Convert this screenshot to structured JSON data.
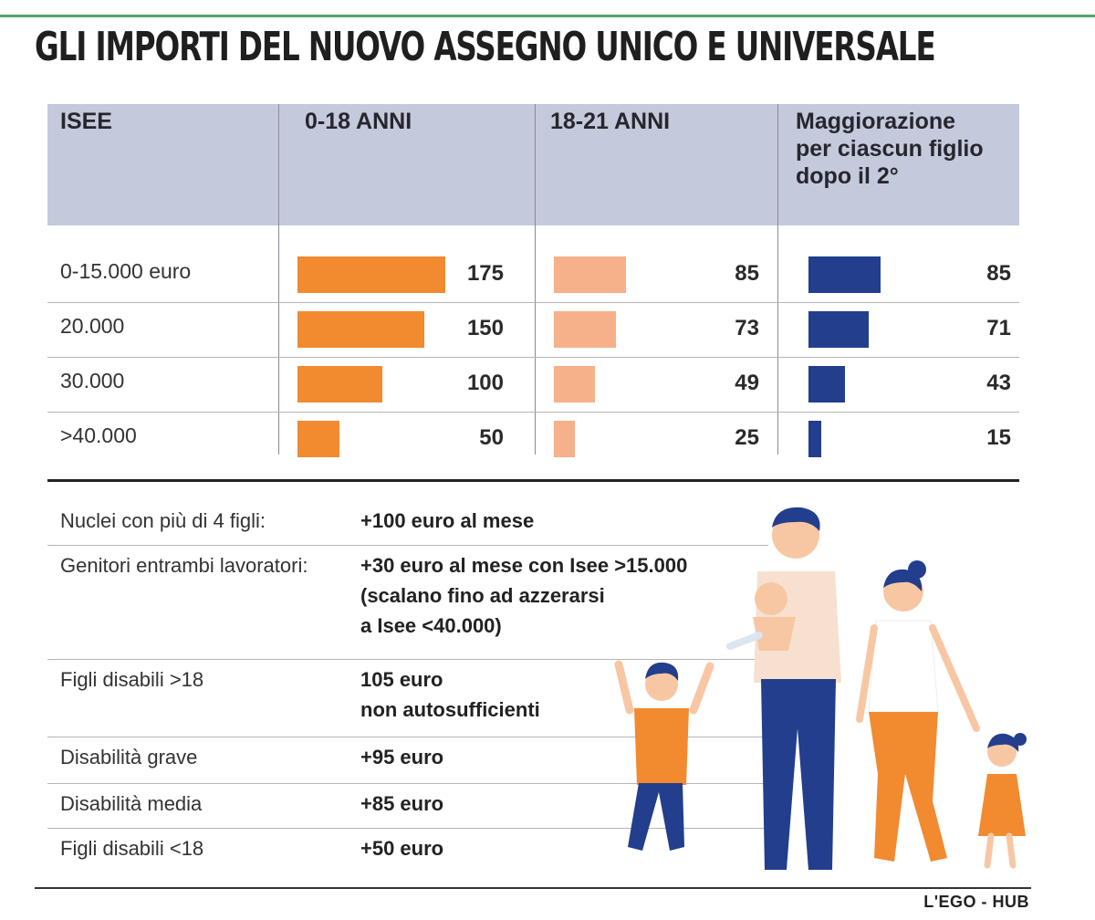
{
  "title": "GLI IMPORTI DEL NUOVO ASSEGNO UNICO E UNIVERSALE",
  "credit": "L'EGO - HUB",
  "colors": {
    "col_0_18": "#f28a30",
    "col_18_21": "#f6b08a",
    "col_extra": "#223e8c",
    "header_bg": "#c5c9dc"
  },
  "chart_data": {
    "type": "table",
    "columns": [
      "ISEE",
      "0-18 ANNI",
      "18-21 ANNI",
      "Maggiorazione per ciascun figlio dopo il 2°"
    ],
    "categories": [
      "0-15.000 euro",
      "20.000",
      "30.000",
      ">40.000"
    ],
    "series": [
      {
        "name": "0-18 ANNI",
        "values": [
          175,
          150,
          100,
          50
        ]
      },
      {
        "name": "18-21 ANNI",
        "values": [
          85,
          73,
          49,
          25
        ]
      },
      {
        "name": "Maggiorazione per ciascun figlio dopo il 2°",
        "values": [
          85,
          71,
          43,
          15
        ]
      }
    ]
  },
  "header": {
    "col0": "ISEE",
    "col1": "0-18 ANNI",
    "col2": "18-21 ANNI",
    "col3_l1": "Maggiorazione",
    "col3_l2": "per ciascun figlio",
    "col3_l3": "dopo il 2°"
  },
  "bonuses": [
    {
      "label": "Nuclei con più di 4 figli:",
      "value_lines": [
        "+100 euro al mese"
      ]
    },
    {
      "label": "Genitori entrambi lavoratori:",
      "value_lines": [
        "+30 euro al mese con Isee >15.000",
        "(scalano fino ad azzerarsi",
        "a Isee <40.000)"
      ]
    },
    {
      "label": "Figli disabili >18",
      "value_lines": [
        "105 euro",
        "non autosufficienti"
      ]
    },
    {
      "label": "Disabilità grave",
      "value_lines": [
        "+95 euro"
      ]
    },
    {
      "label": "Disabilità media",
      "value_lines": [
        "+85 euro"
      ]
    },
    {
      "label": "Figli disabili <18",
      "value_lines": [
        "+50 euro"
      ]
    }
  ]
}
